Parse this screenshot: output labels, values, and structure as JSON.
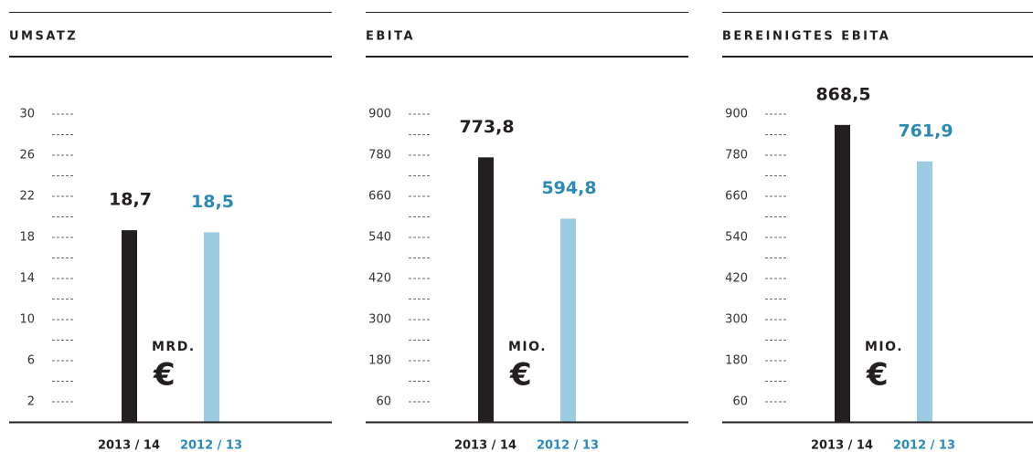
{
  "chart_data": [
    {
      "type": "bar",
      "title": "UMSATZ",
      "unit": "MRD.",
      "currency": "€",
      "categories": [
        "2013 / 14",
        "2012 / 13"
      ],
      "values": [
        18.7,
        18.5
      ],
      "value_labels": [
        "18,7",
        "18,5"
      ],
      "colors": [
        "#231f20",
        "#9ccbe4"
      ],
      "label_colors": [
        "#231f20",
        "#2a8ab5"
      ],
      "ylim": [
        0,
        33
      ],
      "yticks": [
        2,
        6,
        10,
        14,
        18,
        22,
        26,
        30
      ],
      "minor_ticks": [
        4,
        8,
        12,
        16,
        20,
        24,
        28
      ]
    },
    {
      "type": "bar",
      "title": "EBITA",
      "unit": "MIO.",
      "currency": "€",
      "categories": [
        "2013 / 14",
        "2012 / 13"
      ],
      "values": [
        773.8,
        594.8
      ],
      "value_labels": [
        "773,8",
        "594,8"
      ],
      "colors": [
        "#231f20",
        "#9ccbe4"
      ],
      "label_colors": [
        "#231f20",
        "#2a8ab5"
      ],
      "ylim": [
        0,
        990
      ],
      "yticks": [
        60,
        180,
        300,
        420,
        540,
        660,
        780,
        900
      ],
      "minor_ticks": [
        120,
        240,
        360,
        480,
        600,
        720,
        840
      ]
    },
    {
      "type": "bar",
      "title": "BEREINIGTES EBITA",
      "unit": "MIO.",
      "currency": "€",
      "categories": [
        "2013 / 14",
        "2012 / 13"
      ],
      "values": [
        868.5,
        761.9
      ],
      "value_labels": [
        "868,5",
        "761,9"
      ],
      "colors": [
        "#231f20",
        "#9ccbe4"
      ],
      "label_colors": [
        "#231f20",
        "#2a8ab5"
      ],
      "ylim": [
        0,
        990
      ],
      "yticks": [
        60,
        180,
        300,
        420,
        540,
        660,
        780,
        900
      ],
      "minor_ticks": [
        120,
        240,
        360,
        480,
        600,
        720,
        840
      ]
    }
  ]
}
